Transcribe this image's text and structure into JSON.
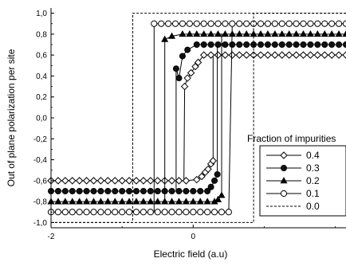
{
  "chart_data": {
    "type": "line",
    "title": "",
    "xlabel": "Electric field (a.u)",
    "ylabel": "Out of plane polarization per site",
    "xlim": [
      -2,
      2.15
    ],
    "ylim": [
      -1.05,
      1.05
    ],
    "x_ticks": [
      {
        "value": -2,
        "label": "-2"
      },
      {
        "value": 0,
        "label": "0"
      }
    ],
    "y_ticks": [
      {
        "value": 1.0,
        "label": "1,0"
      },
      {
        "value": 0.8,
        "label": "0,8"
      },
      {
        "value": 0.6,
        "label": "0,6"
      },
      {
        "value": 0.4,
        "label": "0,4"
      },
      {
        "value": 0.2,
        "label": "0,2"
      },
      {
        "value": 0.0,
        "label": "0,0"
      },
      {
        "value": -0.2,
        "label": "-0,2"
      },
      {
        "value": -0.4,
        "label": "-0,4"
      },
      {
        "value": -0.6,
        "label": "-0,6"
      },
      {
        "value": -0.8,
        "label": "-0,8"
      },
      {
        "value": -1.0,
        "label": "-1,0"
      }
    ],
    "legend": {
      "title": "Fraction of impurities",
      "placement": "right"
    },
    "series": [
      {
        "name": "0.4",
        "marker": "open-diamond",
        "color": "#000000",
        "lower": {
          "level": -0.6,
          "x_end": -0.05,
          "rise": [
            [
              -0.05,
              -0.6
            ],
            [
              0.05,
              -0.59
            ],
            [
              0.12,
              -0.56
            ],
            [
              0.17,
              -0.52
            ],
            [
              0.21,
              -0.49
            ],
            [
              0.25,
              -0.44
            ],
            [
              0.28,
              -0.41
            ]
          ]
        },
        "upper": {
          "level": 0.6,
          "x_start": 0.1,
          "fall": [
            [
              -0.12,
              0.3
            ],
            [
              -0.08,
              0.38
            ],
            [
              -0.03,
              0.43
            ],
            [
              0.03,
              0.49
            ],
            [
              0.07,
              0.53
            ],
            [
              0.1,
              0.56
            ]
          ]
        },
        "jump_x": [
          0.28,
          -0.13
        ]
      },
      {
        "name": "0.3",
        "marker": "filled-circle",
        "color": "#000000",
        "lower": {
          "level": -0.7,
          "x_end": 0.2,
          "rise": [
            [
              0.2,
              -0.7
            ],
            [
              0.25,
              -0.66
            ],
            [
              0.3,
              -0.6
            ],
            [
              0.34,
              -0.54
            ]
          ]
        },
        "upper": {
          "level": 0.7,
          "x_start": -0.03,
          "fall": [
            [
              -0.24,
              0.47
            ],
            [
              -0.2,
              0.38
            ],
            [
              -0.15,
              0.59
            ],
            [
              -0.08,
              0.65
            ],
            [
              -0.03,
              0.68
            ]
          ]
        },
        "jump_x": [
          0.34,
          -0.24
        ]
      },
      {
        "name": "0.2",
        "marker": "filled-triangle",
        "color": "#000000",
        "lower": {
          "level": -0.8,
          "x_end": 0.3,
          "rise": [
            [
              0.3,
              -0.8
            ],
            [
              0.35,
              -0.78
            ],
            [
              0.4,
              -0.74
            ]
          ]
        },
        "upper": {
          "level": 0.8,
          "x_start": -0.2,
          "fall": [
            [
              -0.4,
              0.75
            ],
            [
              -0.3,
              0.78
            ]
          ]
        },
        "jump_x": [
          0.4,
          -0.4
        ]
      },
      {
        "name": "0.1",
        "marker": "open-circle",
        "color": "#000000",
        "lower": {
          "level": -0.9,
          "x_end": 0.55,
          "rise": []
        },
        "upper": {
          "level": 0.9,
          "x_start": -0.55,
          "fall": []
        },
        "jump_x": [
          0.55,
          -0.55
        ]
      },
      {
        "name": "0.0",
        "marker": "none",
        "line_style": "dashed",
        "color": "#000000",
        "lower": {
          "level": -1.0
        },
        "upper": {
          "level": 1.0
        },
        "jump_x": [
          0.85,
          -0.85
        ]
      }
    ]
  }
}
